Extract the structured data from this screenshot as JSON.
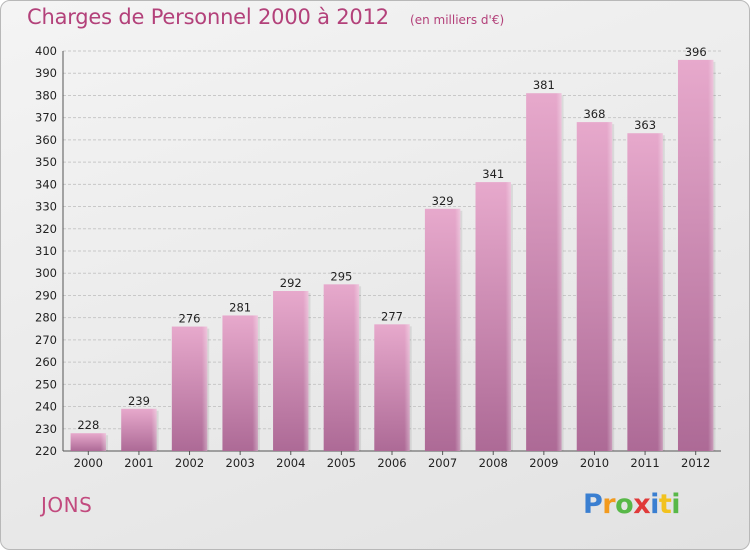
{
  "header": {
    "title": "Charges de Personnel 2000 à 2012",
    "subtitle": "(en milliers d'€)"
  },
  "footer": {
    "commune": "JONS",
    "logo_text": "Proxiti"
  },
  "colors": {
    "accent": "#b3417a",
    "bar_top": "#e7a9cc",
    "bar_bottom": "#ad6a96"
  },
  "chart_data": {
    "type": "bar",
    "title": "Charges de Personnel 2000 à 2012",
    "subtitle": "(en milliers d'€)",
    "categories": [
      "2000",
      "2001",
      "2002",
      "2003",
      "2004",
      "2005",
      "2006",
      "2007",
      "2008",
      "2009",
      "2010",
      "2011",
      "2012"
    ],
    "values": [
      228,
      239,
      276,
      281,
      292,
      295,
      277,
      329,
      341,
      381,
      368,
      363,
      396
    ],
    "ylim": [
      220,
      400
    ],
    "yticks": [
      220,
      230,
      240,
      250,
      260,
      270,
      280,
      290,
      300,
      310,
      320,
      330,
      340,
      350,
      360,
      370,
      380,
      390,
      400
    ],
    "grid": true
  }
}
